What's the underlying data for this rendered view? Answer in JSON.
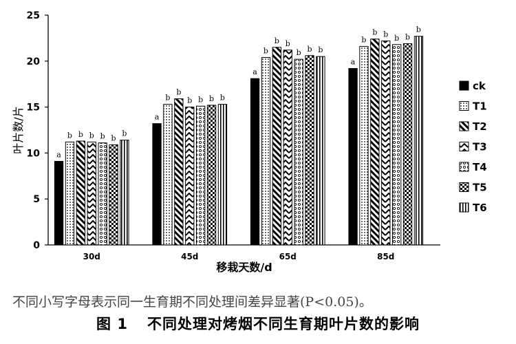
{
  "chart_data": {
    "type": "bar",
    "xlabel": "移栽天数/d",
    "ylabel": "叶片数/片",
    "ylim": [
      0,
      25
    ],
    "yticks": [
      0,
      5,
      10,
      15,
      20,
      25
    ],
    "categories": [
      "30d",
      "45d",
      "65d",
      "85d"
    ],
    "legend_position": "right",
    "grid": false,
    "series": [
      {
        "name": "ck",
        "values": [
          9.1,
          13.2,
          18.1,
          19.2
        ],
        "letters": [
          "a",
          "a",
          "a",
          "a"
        ],
        "pattern": "solid"
      },
      {
        "name": "T1",
        "values": [
          11.2,
          15.3,
          20.4,
          21.6
        ],
        "letters": [
          "b",
          "b",
          "b",
          "b"
        ],
        "pattern": "dots"
      },
      {
        "name": "T2",
        "values": [
          11.3,
          15.9,
          21.5,
          22.4
        ],
        "letters": [
          "b",
          "b",
          "b",
          "b"
        ],
        "pattern": "diag-left"
      },
      {
        "name": "T3",
        "values": [
          11.2,
          15.0,
          21.2,
          22.2
        ],
        "letters": [
          "b",
          "b",
          "b",
          "b"
        ],
        "pattern": "chevron"
      },
      {
        "name": "T4",
        "values": [
          11.1,
          15.1,
          20.2,
          21.8
        ],
        "letters": [
          "b",
          "b",
          "b",
          "b"
        ],
        "pattern": "circles"
      },
      {
        "name": "T5",
        "values": [
          10.9,
          15.2,
          20.6,
          21.9
        ],
        "letters": [
          "b",
          "b",
          "b",
          "b"
        ],
        "pattern": "checker"
      },
      {
        "name": "T6",
        "values": [
          11.4,
          15.3,
          20.5,
          22.7
        ],
        "letters": [
          "b",
          "b",
          "b",
          "b"
        ],
        "pattern": "vertical"
      }
    ]
  },
  "caption": {
    "note": "不同小写字母表示同一生育期不同处理间差异显著(P<0.05)。",
    "fig_label": "图 1",
    "title": "不同处理对烤烟不同生育期叶片数的影响"
  }
}
